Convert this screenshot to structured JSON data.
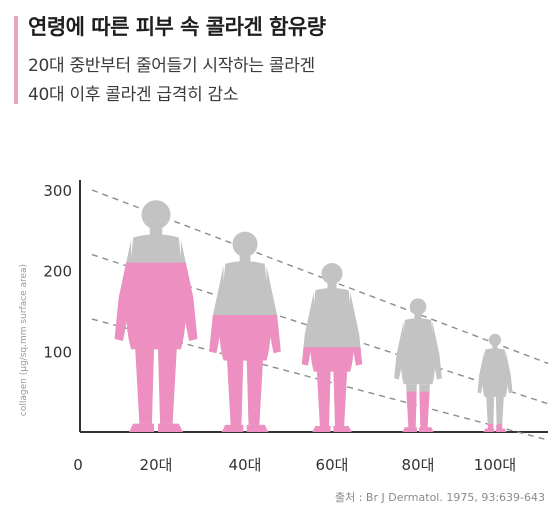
{
  "header": {
    "title": "연령에 따른 피부 속 콜라겐 함유량",
    "subtitle_1": "20대 중반부터 줄어들기 시작하는 콜라겐",
    "subtitle_2": "40대 이후 콜라겐 급격히 감소"
  },
  "colors": {
    "accent": "#e9a3c4",
    "pink": "#ed8fc0",
    "gray": "#c3c3c3",
    "axis": "#333333",
    "trend": "#8c8c8c"
  },
  "chart_data": {
    "type": "pictograph",
    "ylabel": "collagen (μg/sq.mm surface area)",
    "ylim": [
      0,
      300
    ],
    "yticks": [
      "300",
      "200",
      "100"
    ],
    "x_origin_label": "0",
    "categories": [
      "20대",
      "40대",
      "60대",
      "80대",
      "100대"
    ],
    "figures": [
      {
        "age": "20대",
        "collagen": 210,
        "trend_top": 300
      },
      {
        "age": "40대",
        "collagen": 145,
        "trend_top": 260
      },
      {
        "age": "60대",
        "collagen": 105,
        "trend_top": 220
      },
      {
        "age": "80대",
        "collagen": 50,
        "trend_top": 175
      },
      {
        "age": "100대",
        "collagen": 10,
        "trend_top": 130
      }
    ],
    "trend_lines": [
      {
        "from": [
          "0",
          300
        ],
        "to": [
          "100대+",
          85
        ]
      },
      {
        "from": [
          "0",
          220
        ],
        "to": [
          "100대+",
          35
        ]
      },
      {
        "from": [
          "0",
          140
        ],
        "to": [
          "100대+",
          -10
        ]
      }
    ]
  },
  "source": "출처 : Br J Dermatol. 1975, 93:639-643"
}
